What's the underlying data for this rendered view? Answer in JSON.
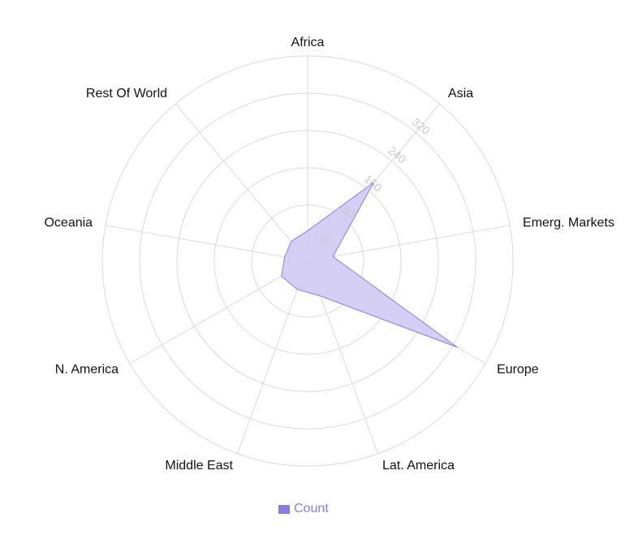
{
  "chart_data": {
    "type": "radar",
    "categories": [
      "Africa",
      "Asia",
      "Emerg. Markets",
      "Europe",
      "Lat. America",
      "Middle East",
      "N. America",
      "Oceania",
      "Rest Of World"
    ],
    "series": [
      {
        "name": "Count",
        "values": [
          25,
          180,
          15,
          330,
          40,
          25,
          25,
          10,
          15
        ]
      }
    ],
    "r_ticks": [
      0,
      80,
      160,
      240,
      320
    ],
    "r_range": [
      -40,
      400
    ],
    "grid": true,
    "legend_position": "bottom",
    "colors": {
      "stroke": "#8a7be2",
      "fill": "#d3ccf5",
      "legend_text": "#8a7be2",
      "grid": "#d9d9d9",
      "tick": "#c7c7c7"
    }
  }
}
